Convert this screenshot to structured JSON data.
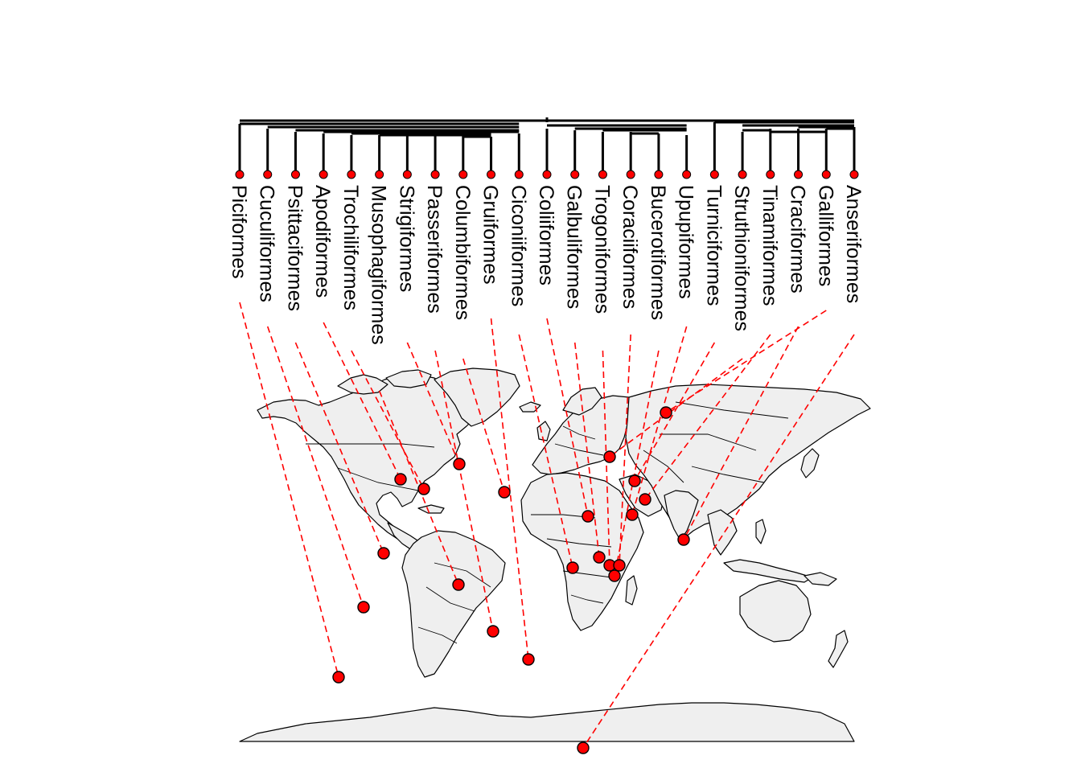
{
  "figure": {
    "type": "phylogeographic tree-to-map plot",
    "colors": {
      "tree": "#000000",
      "links": "#ff0000",
      "points": "#ff0000",
      "land": "#efefef"
    }
  },
  "tips": [
    "Piciformes",
    "Cuculiformes",
    "Psittaciformes",
    "Apodiformes",
    "Trochiliformes",
    "Musophagiformes",
    "Strigiformes",
    "Passeriformes",
    "Columbiformes",
    "Gruiformes",
    "Ciconiiformes",
    "Coliiformes",
    "Galbuliformes",
    "Trogoniformes",
    "Coraciiformes",
    "Bucerotiformes",
    "Upupiformes",
    "Turniciformes",
    "Struthioniformes",
    "Tinamiformes",
    "Craciformes",
    "Galliformes",
    "Anseriformes"
  ],
  "tip_style": {
    "point_color": "#ff0000",
    "line_style": "dashed"
  }
}
